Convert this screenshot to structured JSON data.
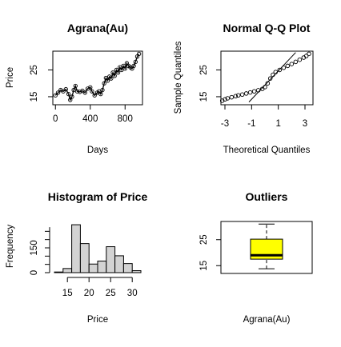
{
  "chart_data": [
    {
      "type": "line",
      "title": "Agrana(Au)",
      "xlabel": "Days",
      "ylabel": "Price",
      "xlim": [
        -30,
        1000
      ],
      "ylim": [
        12,
        32
      ],
      "xticks": [
        0,
        400,
        800
      ],
      "yticks": [
        15,
        25
      ],
      "marker": "open-circle",
      "approx_path": [
        [
          0,
          15.5
        ],
        [
          30,
          16.5
        ],
        [
          60,
          17.5
        ],
        [
          90,
          17.0
        ],
        [
          120,
          17.8
        ],
        [
          150,
          16.0
        ],
        [
          170,
          13.8
        ],
        [
          190,
          15.0
        ],
        [
          210,
          17.5
        ],
        [
          230,
          19.0
        ],
        [
          250,
          17.0
        ],
        [
          280,
          16.8
        ],
        [
          310,
          17.2
        ],
        [
          340,
          16.5
        ],
        [
          370,
          18.0
        ],
        [
          400,
          18.5
        ],
        [
          420,
          17.0
        ],
        [
          450,
          15.5
        ],
        [
          480,
          16.5
        ],
        [
          500,
          17.0
        ],
        [
          520,
          16.0
        ],
        [
          540,
          17.5
        ],
        [
          560,
          20.0
        ],
        [
          580,
          22.0
        ],
        [
          600,
          21.0
        ],
        [
          620,
          22.5
        ],
        [
          640,
          21.8
        ],
        [
          660,
          24.0
        ],
        [
          680,
          22.8
        ],
        [
          700,
          25.0
        ],
        [
          720,
          24.0
        ],
        [
          740,
          26.0
        ],
        [
          760,
          25.0
        ],
        [
          780,
          26.5
        ],
        [
          800,
          25.5
        ],
        [
          820,
          27.5
        ],
        [
          840,
          26.5
        ],
        [
          860,
          26.0
        ],
        [
          880,
          25.5
        ],
        [
          900,
          26.5
        ],
        [
          920,
          28.0
        ],
        [
          940,
          30.0
        ],
        [
          960,
          31.0
        ]
      ]
    },
    {
      "type": "scatter",
      "title": "Normal Q-Q Plot",
      "xlabel": "Theoretical Quantiles",
      "ylabel": "Sample Quantiles",
      "xlim": [
        -3.3,
        3.6
      ],
      "ylim": [
        12,
        32
      ],
      "xticks": [
        -3,
        -1,
        1,
        3
      ],
      "yticks": [
        15,
        25
      ],
      "approx_points": [
        [
          -3.2,
          13.5
        ],
        [
          -3.0,
          14.0
        ],
        [
          -2.8,
          14.4
        ],
        [
          -2.5,
          14.8
        ],
        [
          -2.2,
          15.2
        ],
        [
          -2.0,
          15.5
        ],
        [
          -1.7,
          15.8
        ],
        [
          -1.4,
          16.2
        ],
        [
          -1.1,
          16.6
        ],
        [
          -0.8,
          17.0
        ],
        [
          -0.5,
          17.4
        ],
        [
          -0.2,
          17.9
        ],
        [
          0.0,
          18.6
        ],
        [
          0.2,
          20.0
        ],
        [
          0.4,
          21.8
        ],
        [
          0.6,
          23.2
        ],
        [
          0.8,
          24.2
        ],
        [
          1.1,
          25.0
        ],
        [
          1.4,
          25.8
        ],
        [
          1.7,
          26.5
        ],
        [
          2.0,
          27.2
        ],
        [
          2.3,
          28.0
        ],
        [
          2.6,
          28.8
        ],
        [
          2.9,
          29.6
        ],
        [
          3.1,
          30.2
        ],
        [
          3.3,
          31.0
        ]
      ],
      "reference_line": [
        [
          -1.2,
          13.0
        ],
        [
          2.3,
          31.5
        ]
      ]
    },
    {
      "type": "bar",
      "title": "Histogram of Price",
      "xlabel": "Price",
      "ylabel": "Frequency",
      "xlim": [
        12,
        32
      ],
      "ylim": [
        0,
        300
      ],
      "xticks": [
        15,
        20,
        25,
        30
      ],
      "yticks": [
        0,
        150
      ],
      "bins": [
        {
          "from": 12,
          "to": 14,
          "count": 4
        },
        {
          "from": 14,
          "to": 16,
          "count": 25
        },
        {
          "from": 16,
          "to": 18,
          "count": 290
        },
        {
          "from": 18,
          "to": 20,
          "count": 176
        },
        {
          "from": 20,
          "to": 22,
          "count": 52
        },
        {
          "from": 22,
          "to": 24,
          "count": 70
        },
        {
          "from": 24,
          "to": 26,
          "count": 157
        },
        {
          "from": 26,
          "to": 28,
          "count": 102
        },
        {
          "from": 28,
          "to": 30,
          "count": 55
        },
        {
          "from": 30,
          "to": 32,
          "count": 12
        }
      ]
    },
    {
      "type": "box",
      "title": "Outliers",
      "xlabel": "Agrana(Au)",
      "ylim": [
        12,
        32
      ],
      "yticks": [
        15,
        25
      ],
      "box_color": "#ffff00",
      "min": 13.8,
      "q1": 17.5,
      "median": 19.0,
      "q3": 25.2,
      "max": 31.0
    }
  ]
}
